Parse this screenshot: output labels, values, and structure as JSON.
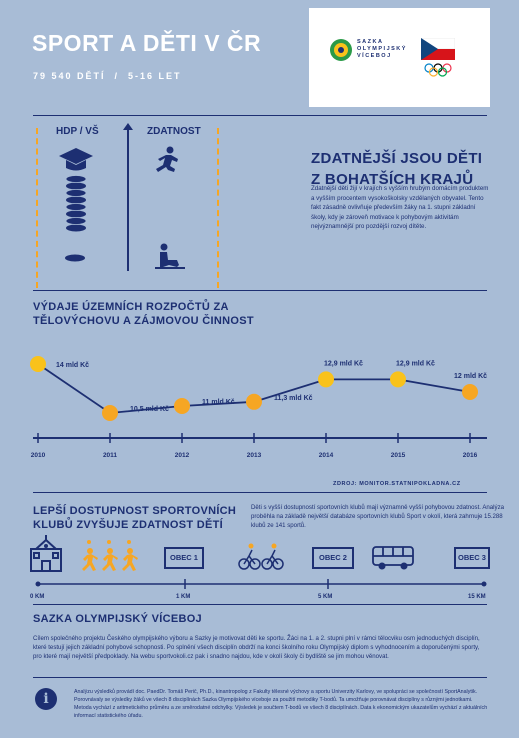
{
  "header": {
    "title": "SPORT A DĚTI V ČR",
    "subtitle": "79 540 DĚTÍ  /  5-16 LET",
    "logo_text": [
      "SAZKA",
      "OLYMPIJSKÝ",
      "VÍCEBOJ"
    ]
  },
  "section1": {
    "col1_heading": "HDP / VŠ",
    "col2_heading": "ZDATNOST",
    "heading_line1": "ZDATNĚJŠÍ JSOU DĚTI",
    "heading_line2": "Z BOHATŠÍCH KRAJŮ",
    "text": "Zdatnější děti žijí v krajích s vyšším hrubým domácím produktem a vyšším procentem vysokoškolsky vzdělaných obyvatel. Tento fakt zásadně ovlivňuje především žáky na 1. stupni základní školy, kdy je zároveň motivace k pohybovým aktivitám nejvýznamnější pro pozdější rozvoj dítěte."
  },
  "section2": {
    "heading_line1": "VÝDAJE ÚZEMNÍCH ROZPOČTŮ ZA",
    "heading_line2": "TĚLOVÝCHOVU A ZÁJMOVOU ČINNOST",
    "source": "ZDROJ: MONITOR.STATNIPOKLADNA.CZ"
  },
  "chart_data": {
    "type": "line",
    "x": [
      "2010",
      "2011",
      "2012",
      "2013",
      "2014",
      "2015",
      "2016"
    ],
    "values": [
      14,
      10.5,
      11,
      11.3,
      12.9,
      12.9,
      12
    ],
    "value_labels": [
      "14 mld Kč",
      "10,5 mld Kč",
      "11 mld Kč",
      "11,3 mld Kč",
      "12,9 mld Kč",
      "12,9 mld Kč",
      "12 mld Kč"
    ],
    "title": "VÝDAJE ÚZEMNÍCH ROZPOČTŮ ZA TĚLOVÝCHOVU A ZÁJMOVOU ČINNOST",
    "xlabel": "",
    "ylabel": "",
    "colors": {
      "highlight": "#f9c21b",
      "normal": "#f6a623",
      "line": "#1d2f72"
    }
  },
  "section3": {
    "heading_line1": "LEPŠÍ DOSTUPNOST SPORTOVNÍCH",
    "heading_line2": "KLUBŮ ZVYŠUJE ZDATNOST DĚTÍ",
    "text": "Děti s vyšší dostupností sportovních klubů mají významně vyšší pohybovou zdatnost. Analýza proběhla na základě největší databáze sportovních klubů Sport v okolí, která zahrnuje 15.288 klubů ze 141 sportů.",
    "obec_labels": [
      "OBEC 1",
      "OBEC 2",
      "OBEC 3"
    ],
    "km_labels": [
      "0 KM",
      "1 KM",
      "5 KM",
      "15 KM"
    ]
  },
  "section4": {
    "heading": "SAZKA OLYMPIJSKÝ VÍCEBOJ",
    "text": "Cílem společného projektu Českého olympijského výboru a Sazky je motivovat děti ke sportu. Žáci na 1. a 2. stupni plní v rámci tělocviku osm jednoduchých disciplín, které testují jejich základní pohybové schopnosti. Po splnění všech disciplín obdrží na konci školního roku Olympijský diplom s vyhodnocením a doporučenými sporty, pro které mají největší předpoklady. Na webu sportvokoli.cz pak i snadno najdou, kde v okolí školy či bydliště se jim mohou věnovat.",
    "info": "Analýzu výsledků provádí doc. PaedDr. Tomáš Perič, Ph.D., kinantropolog z Fakulty tělesné výchovy a sportu Univerzity Karlovy, ve spolupráci se společností SportAnalytik. Porovnávaly se výsledky žáků ve všech 8 disciplínách Sazka Olympijského víceboje za použití metodiky T-bodů. Ta umožňuje porovnávat disciplíny s různými jednotkami. Metoda vychází z aritmetického průměru a ze směrodatné odchylky. Výsledek je součtem T-bodů ve všech 8 disciplínách.  Data k ekonomickým ukazatelům vychází z aktuálních informací statistického úřadu."
  }
}
